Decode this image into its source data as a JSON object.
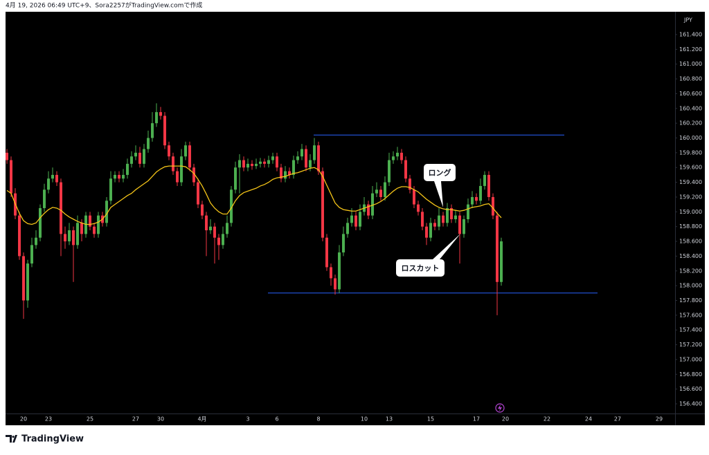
{
  "header": {
    "text": "4月 19, 2026 06:49 UTC+9、Sora2257がTradingView.comで作成"
  },
  "footer": {
    "logo": "TradingView"
  },
  "chart_data": {
    "type": "candlestick",
    "currency": "JPY",
    "up_color": "#4caf50",
    "down_color": "#f23645",
    "ma_color": "#f5c518",
    "ylim": [
      156.269,
      161.709
    ],
    "yticks": [
      {
        "value": 156.4,
        "label": "156.400"
      },
      {
        "value": 156.6,
        "label": "156.600"
      },
      {
        "value": 156.8,
        "label": "156.800"
      },
      {
        "value": 157,
        "label": "157.000"
      },
      {
        "value": 157.2,
        "label": "157.200"
      },
      {
        "value": 157.4,
        "label": "157.400"
      },
      {
        "value": 157.6,
        "label": "157.600"
      },
      {
        "value": 157.8,
        "label": "157.800"
      },
      {
        "value": 158,
        "label": "158.000"
      },
      {
        "value": 158.2,
        "label": "158.200"
      },
      {
        "value": 158.4,
        "label": "158.400"
      },
      {
        "value": 158.6,
        "label": "158.600"
      },
      {
        "value": 158.8,
        "label": "158.800"
      },
      {
        "value": 159,
        "label": "159.000"
      },
      {
        "value": 159.2,
        "label": "159.200"
      },
      {
        "value": 159.4,
        "label": "159.400"
      },
      {
        "value": 159.6,
        "label": "159.600"
      },
      {
        "value": 159.8,
        "label": "159.800"
      },
      {
        "value": 160,
        "label": "160.000"
      },
      {
        "value": 160.2,
        "label": "160.200"
      },
      {
        "value": 160.4,
        "label": "160.400"
      },
      {
        "value": 160.6,
        "label": "160.600"
      },
      {
        "value": 160.8,
        "label": "160.800"
      },
      {
        "value": 161,
        "label": "161.000"
      },
      {
        "value": 161.2,
        "label": "161.200"
      },
      {
        "value": 161.4,
        "label": "161.400"
      }
    ],
    "categories": [
      null,
      null,
      null,
      null,
      "20",
      null,
      null,
      null,
      null,
      null,
      "23",
      null,
      null,
      null,
      null,
      null,
      null,
      null,
      null,
      null,
      "25",
      null,
      null,
      null,
      null,
      null,
      null,
      null,
      null,
      null,
      null,
      "27",
      null,
      null,
      null,
      null,
      null,
      "30",
      null,
      null,
      null,
      null,
      null,
      null,
      null,
      null,
      null,
      "4月",
      null,
      null,
      null,
      null,
      null,
      null,
      null,
      null,
      null,
      null,
      "3",
      null,
      null,
      null,
      null,
      null,
      null,
      "6",
      null,
      null,
      null,
      null,
      null,
      null,
      null,
      null,
      null,
      "8",
      null,
      null,
      null,
      null,
      null,
      null,
      null,
      null,
      null,
      null,
      "10",
      null,
      null,
      null,
      null,
      null,
      "13",
      null,
      null,
      null,
      null,
      null,
      null,
      null,
      null,
      null,
      "15",
      null,
      null,
      null,
      null,
      null,
      null,
      null,
      null,
      null,
      null,
      "17",
      null,
      null,
      null,
      null,
      null,
      null,
      "20",
      null,
      null,
      null,
      null,
      null,
      null,
      null,
      null,
      null,
      "22",
      null,
      null,
      null,
      null,
      null,
      null,
      null,
      null,
      null,
      "24",
      null,
      null,
      null,
      null,
      null,
      null,
      "27",
      null,
      null,
      null,
      null,
      null,
      null,
      null,
      null,
      null,
      "29",
      null,
      null,
      null
    ],
    "open": [
      159.8,
      159.7,
      159.25,
      158.95,
      158.4,
      157.8,
      158.3,
      158.55,
      158.65,
      159.05,
      159.3,
      159.45,
      159.5,
      159.4,
      158.7,
      158.6,
      158.75,
      158.55,
      158.85,
      158.7,
      158.95,
      158.8,
      158.7,
      158.95,
      158.85,
      159.15,
      159.45,
      159.5,
      159.45,
      159.5,
      159.65,
      159.75,
      159.8,
      159.65,
      159.85,
      160.0,
      160.2,
      160.35,
      160.3,
      159.9,
      159.75,
      159.55,
      159.4,
      159.75,
      159.9,
      159.6,
      159.4,
      159.1,
      158.95,
      158.75,
      158.8,
      158.65,
      158.55,
      158.7,
      158.85,
      159.3,
      159.6,
      159.7,
      159.6,
      159.65,
      159.62,
      159.65,
      159.68,
      159.65,
      159.7,
      159.75,
      159.6,
      159.45,
      159.55,
      159.5,
      159.7,
      159.75,
      159.85,
      159.6,
      159.7,
      159.9,
      159.55,
      158.65,
      158.25,
      158.1,
      157.95,
      158.45,
      158.7,
      158.85,
      158.95,
      158.8,
      159.0,
      159.1,
      158.95,
      159.25,
      159.3,
      159.2,
      159.4,
      159.7,
      159.75,
      159.8,
      159.7,
      159.45,
      159.3,
      159.1,
      159.0,
      158.8,
      158.65,
      158.85,
      158.8,
      158.95,
      158.85,
      159.05,
      158.9,
      158.95,
      158.7,
      158.9,
      159.1,
      159.2,
      159.15,
      159.35,
      159.5,
      159.2,
      158.95,
      158.05,
      null,
      null,
      null,
      null,
      null,
      null,
      null,
      null,
      null,
      null,
      null,
      null,
      null,
      null,
      null,
      null,
      null,
      null,
      null,
      null,
      null,
      null,
      null,
      null,
      null,
      null,
      null,
      null,
      null,
      null,
      null,
      null,
      null,
      null,
      null,
      null,
      null,
      null,
      null,
      null,
      null
    ],
    "high": [
      159.85,
      159.75,
      159.32,
      159.0,
      158.45,
      158.35,
      158.65,
      158.75,
      159.1,
      159.38,
      159.55,
      159.6,
      159.55,
      159.45,
      158.8,
      158.85,
      158.8,
      158.95,
      158.9,
      159.0,
      159.0,
      158.85,
      159.0,
      159.0,
      159.2,
      159.55,
      159.55,
      159.55,
      159.58,
      159.72,
      159.82,
      159.9,
      159.88,
      159.92,
      160.1,
      160.35,
      160.47,
      160.42,
      160.35,
      159.95,
      159.8,
      159.6,
      159.85,
      159.95,
      159.95,
      159.65,
      159.45,
      159.15,
      159.0,
      158.9,
      158.85,
      158.7,
      158.8,
      158.95,
      159.35,
      159.68,
      159.78,
      159.75,
      159.72,
      159.7,
      159.72,
      159.73,
      159.72,
      159.76,
      159.8,
      159.8,
      159.65,
      159.62,
      159.6,
      159.76,
      159.82,
      159.92,
      159.9,
      159.78,
      160.0,
      159.95,
      159.6,
      158.7,
      158.3,
      158.15,
      158.55,
      158.8,
      158.92,
      159.05,
      159.0,
      159.1,
      159.2,
      159.15,
      159.35,
      159.4,
      159.35,
      159.48,
      159.8,
      159.82,
      159.88,
      159.85,
      159.75,
      159.5,
      159.35,
      159.15,
      159.05,
      158.85,
      158.92,
      158.9,
      159.05,
      159.0,
      159.12,
      159.1,
      159.02,
      159.0,
      158.95,
      159.18,
      159.28,
      159.25,
      159.45,
      159.55,
      159.55,
      159.25,
      159.0,
      158.65,
      null,
      null,
      null,
      null,
      null,
      null,
      null,
      null,
      null,
      null,
      null,
      null,
      null,
      null,
      null,
      null,
      null,
      null,
      null,
      null,
      null,
      null,
      null,
      null,
      null,
      null,
      null,
      null,
      null,
      null,
      null,
      null,
      null,
      null,
      null,
      null,
      null,
      null,
      null,
      null,
      null
    ],
    "low": [
      159.65,
      159.2,
      158.9,
      158.35,
      157.55,
      157.7,
      158.25,
      158.5,
      158.6,
      159.0,
      159.25,
      159.4,
      159.35,
      158.4,
      158.5,
      158.55,
      158.05,
      158.5,
      158.6,
      158.65,
      158.75,
      158.65,
      158.65,
      158.8,
      158.8,
      159.1,
      159.4,
      159.4,
      159.4,
      159.45,
      159.6,
      159.7,
      159.6,
      159.6,
      159.8,
      159.95,
      160.15,
      160.25,
      159.85,
      159.7,
      159.5,
      159.35,
      159.35,
      159.7,
      159.55,
      159.35,
      159.05,
      158.9,
      158.4,
      158.7,
      158.3,
      158.35,
      158.5,
      158.65,
      158.8,
      159.25,
      159.25,
      159.55,
      159.55,
      159.57,
      159.58,
      159.6,
      159.6,
      159.6,
      159.65,
      159.55,
      159.4,
      159.4,
      159.45,
      159.45,
      159.65,
      159.7,
      159.55,
      159.55,
      159.65,
      159.5,
      158.6,
      158.2,
      158.0,
      157.88,
      157.9,
      158.4,
      158.65,
      158.8,
      158.75,
      158.75,
      158.95,
      158.9,
      158.9,
      159.2,
      159.15,
      159.15,
      159.35,
      159.65,
      159.7,
      159.65,
      159.4,
      159.25,
      159.05,
      158.95,
      158.75,
      158.55,
      158.6,
      158.75,
      158.75,
      158.8,
      158.8,
      158.85,
      158.85,
      158.3,
      158.65,
      158.85,
      159.05,
      159.1,
      159.1,
      159.3,
      159.15,
      158.9,
      157.6,
      158.0,
      null,
      null,
      null,
      null,
      null,
      null,
      null,
      null,
      null,
      null,
      null,
      null,
      null,
      null,
      null,
      null,
      null,
      null,
      null,
      null,
      null,
      null,
      null,
      null,
      null,
      null,
      null,
      null,
      null,
      null,
      null,
      null,
      null,
      null,
      null,
      null,
      null,
      null,
      null,
      null,
      null
    ],
    "close": [
      159.7,
      159.25,
      158.95,
      158.4,
      157.8,
      158.3,
      158.55,
      158.65,
      159.05,
      159.3,
      159.45,
      159.5,
      159.4,
      158.7,
      158.6,
      158.75,
      158.55,
      158.85,
      158.7,
      158.95,
      158.8,
      158.7,
      158.95,
      158.85,
      159.15,
      159.45,
      159.5,
      159.45,
      159.5,
      159.65,
      159.75,
      159.8,
      159.65,
      159.85,
      160.0,
      160.2,
      160.35,
      160.3,
      159.9,
      159.75,
      159.55,
      159.4,
      159.75,
      159.9,
      159.6,
      159.4,
      159.1,
      158.95,
      158.75,
      158.8,
      158.65,
      158.55,
      158.7,
      158.85,
      159.3,
      159.6,
      159.7,
      159.6,
      159.65,
      159.62,
      159.65,
      159.68,
      159.65,
      159.7,
      159.75,
      159.6,
      159.45,
      159.55,
      159.5,
      159.7,
      159.75,
      159.85,
      159.6,
      159.7,
      159.9,
      159.55,
      158.65,
      158.25,
      158.1,
      157.95,
      158.45,
      158.7,
      158.85,
      158.95,
      158.8,
      159.0,
      159.1,
      158.95,
      159.25,
      159.3,
      159.2,
      159.4,
      159.7,
      159.75,
      159.8,
      159.7,
      159.45,
      159.3,
      159.1,
      159.0,
      158.8,
      158.65,
      158.85,
      158.8,
      158.95,
      158.85,
      159.05,
      158.9,
      158.95,
      158.7,
      158.9,
      159.1,
      159.2,
      159.15,
      159.35,
      159.5,
      159.2,
      158.95,
      158.05,
      158.6,
      null,
      null,
      null,
      null,
      null,
      null,
      null,
      null,
      null,
      null,
      null,
      null,
      null,
      null,
      null,
      null,
      null,
      null,
      null,
      null,
      null,
      null,
      null,
      null,
      null,
      null,
      null,
      null,
      null,
      null,
      null,
      null,
      null,
      null,
      null,
      null,
      null,
      null,
      null,
      null,
      null
    ],
    "ma_values": [
      159.29,
      159.25,
      159.11,
      158.98,
      158.88,
      158.84,
      158.83,
      158.85,
      158.92,
      158.98,
      159.03,
      159.06,
      159.05,
      159.02,
      158.97,
      158.93,
      158.9,
      158.87,
      158.85,
      158.83,
      158.83,
      158.84,
      158.86,
      158.9,
      158.97,
      159.06,
      159.1,
      159.14,
      159.18,
      159.22,
      159.25,
      159.3,
      159.34,
      159.38,
      159.42,
      159.48,
      159.54,
      159.58,
      159.61,
      159.62,
      159.62,
      159.62,
      159.62,
      159.61,
      159.57,
      159.52,
      159.44,
      159.35,
      159.24,
      159.12,
      159.05,
      159.0,
      158.97,
      158.97,
      159.05,
      159.15,
      159.22,
      159.26,
      159.28,
      159.3,
      159.32,
      159.35,
      159.37,
      159.4,
      159.44,
      159.46,
      159.47,
      159.48,
      159.5,
      159.52,
      159.53,
      159.55,
      159.57,
      159.59,
      159.6,
      159.57,
      159.48,
      159.36,
      159.24,
      159.12,
      159.06,
      159.03,
      159.02,
      159.01,
      159.01,
      159.03,
      159.05,
      159.07,
      159.09,
      159.11,
      159.14,
      159.18,
      159.23,
      159.28,
      159.32,
      159.34,
      159.34,
      159.33,
      159.3,
      159.27,
      159.22,
      159.17,
      159.13,
      159.09,
      159.06,
      159.04,
      159.03,
      159.03,
      159.02,
      159.01,
      159.02,
      159.04,
      159.06,
      159.07,
      159.08,
      159.1,
      159.11,
      159.05,
      158.98,
      158.92,
      null,
      null,
      null,
      null,
      null,
      null,
      null,
      null,
      null,
      null,
      null,
      null,
      null,
      null,
      null,
      null,
      null,
      null,
      null,
      null,
      null,
      null,
      null,
      null,
      null,
      null,
      null,
      null,
      null,
      null,
      null,
      null,
      null,
      null,
      null,
      null,
      null,
      null,
      null,
      null,
      null
    ],
    "hlines": [
      {
        "value": 160.04,
        "color": "#2962ff"
      },
      {
        "value": 157.9,
        "color": "#2962ff"
      }
    ],
    "annotations": [
      {
        "text": "ロング"
      },
      {
        "text": "ロスカット"
      }
    ]
  }
}
